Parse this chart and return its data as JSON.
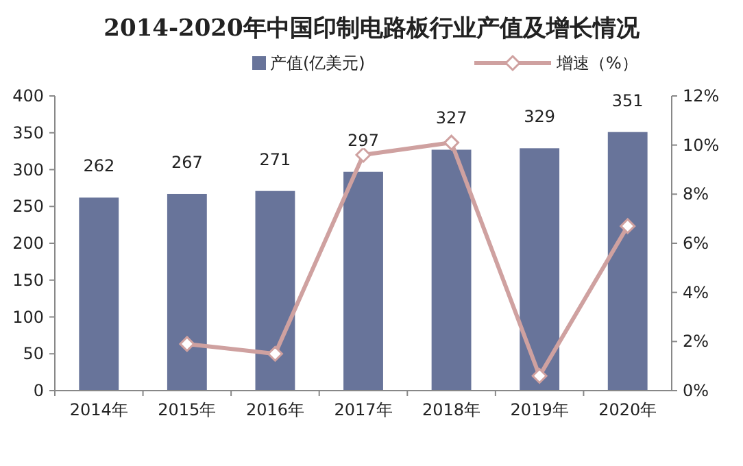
{
  "chart_data": {
    "type": "bar",
    "title": "2014-2020年中国印制电路板行业产值及增长情况",
    "categories": [
      "2014年",
      "2015年",
      "2016年",
      "2017年",
      "2018年",
      "2019年",
      "2020年"
    ],
    "series": [
      {
        "name": "产值(亿美元)",
        "color": "#68749a",
        "values": [
          262,
          267,
          271,
          297,
          327,
          329,
          351
        ],
        "value_labels": [
          "262",
          "267",
          "271",
          "297",
          "327",
          "329",
          "351"
        ]
      },
      {
        "name": "增速（%）",
        "type": "line",
        "axis": "y2",
        "color": "#cfa1a0",
        "marker": "diamond",
        "values": [
          null,
          1.9,
          1.5,
          9.6,
          10.1,
          0.6,
          6.7
        ]
      }
    ],
    "ylim": [
      0,
      400
    ],
    "yticks": [
      0,
      50,
      100,
      150,
      200,
      250,
      300,
      350,
      400
    ],
    "y2lim": [
      0,
      12
    ],
    "y2ticks": [
      {
        "value": 0,
        "label": "0%"
      },
      {
        "value": 2,
        "label": "2%"
      },
      {
        "value": 4,
        "label": "4%"
      },
      {
        "value": 6,
        "label": "6%"
      },
      {
        "value": 8,
        "label": "8%"
      },
      {
        "value": 10,
        "label": "10%"
      },
      {
        "value": 12,
        "label": "12%"
      }
    ],
    "legend": "top"
  }
}
